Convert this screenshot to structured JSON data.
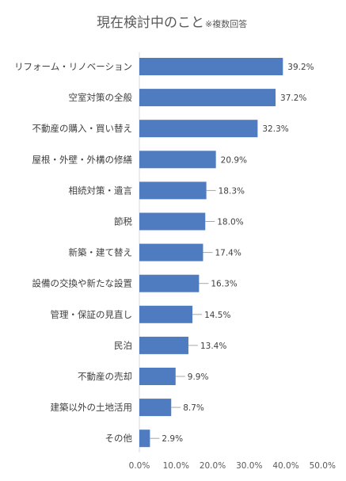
{
  "chart_data": {
    "type": "bar",
    "orientation": "horizontal",
    "title": "現在検討中のこと",
    "subtitle": "※複数回答",
    "categories": [
      "リフォーム・リノベーション",
      "空室対策の全般",
      "不動産の購入・買い替え",
      "屋根・外壁・外構の修繕",
      "相続対策・遺言",
      "節税",
      "新築・建て替え",
      "設備の交換や新たな設置",
      "管理・保証の見直し",
      "民泊",
      "不動産の売却",
      "建築以外の土地活用",
      "その他"
    ],
    "values": [
      39.2,
      37.2,
      32.3,
      20.9,
      18.3,
      18.0,
      17.4,
      16.3,
      14.5,
      13.4,
      9.9,
      8.7,
      2.9
    ],
    "value_labels": [
      "39.2%",
      "37.2%",
      "32.3%",
      "20.9%",
      "18.3%",
      "18.0%",
      "17.4%",
      "16.3%",
      "14.5%",
      "13.4%",
      "9.9%",
      "8.7%",
      "2.9%"
    ],
    "x_ticks": [
      "0.0%",
      "10.0%",
      "20.0%",
      "30.0%",
      "40.0%",
      "50.0%"
    ],
    "xlim": [
      0,
      50
    ],
    "grid": false,
    "legend": "none",
    "bar_color": "#4F7CC0",
    "leader_line_color": "#A6A6A6"
  }
}
